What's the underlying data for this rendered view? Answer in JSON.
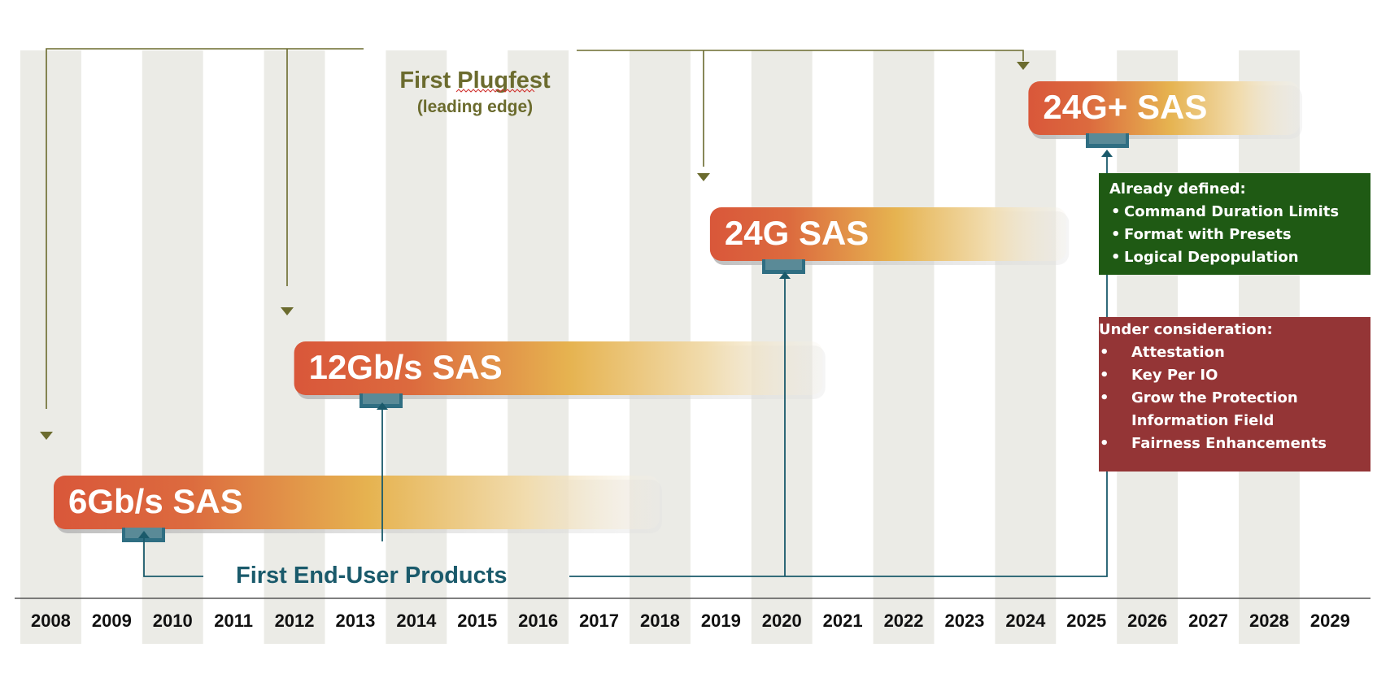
{
  "years": [
    "2008",
    "2009",
    "2010",
    "2011",
    "2012",
    "2013",
    "2014",
    "2015",
    "2016",
    "2017",
    "2018",
    "2019",
    "2020",
    "2021",
    "2022",
    "2023",
    "2024",
    "2025",
    "2026",
    "2027",
    "2028",
    "2029"
  ],
  "generations": [
    {
      "label": "6Gb/s SAS",
      "start_year": 2008,
      "end_year": 2018
    },
    {
      "label": "12Gb/s SAS",
      "start_year": 2012,
      "end_year": 2021
    },
    {
      "label": "24G SAS",
      "start_year": 2019,
      "end_year": 2025
    },
    {
      "label": "24G+ SAS",
      "start_year": 2024,
      "end_year": 2029
    }
  ],
  "plugfest": {
    "title": "First Plugfest",
    "subtitle": "(leading edge)",
    "years": [
      2008,
      2012,
      2019,
      2024
    ]
  },
  "products": {
    "label": "First End-User Products",
    "years": [
      2010,
      2013,
      2020,
      2025
    ]
  },
  "already_defined": {
    "heading": "Already defined:",
    "items": [
      "Command Duration Limits",
      "Format with Presets",
      "Logical Depopulation"
    ]
  },
  "under_consideration": {
    "heading": "Under consideration:",
    "items": [
      "Attestation",
      "Key Per IO",
      "Grow the Protection Information Field",
      "Fairness Enhancements"
    ]
  },
  "colors": {
    "band": "#ebebe6",
    "bar_start": "#d9573a",
    "bar_mid": "#e4b04f",
    "plugfest": "#6b6b2e",
    "products": "#1a5a6b",
    "green_box": "#1f5a14",
    "red_box": "#943536"
  }
}
